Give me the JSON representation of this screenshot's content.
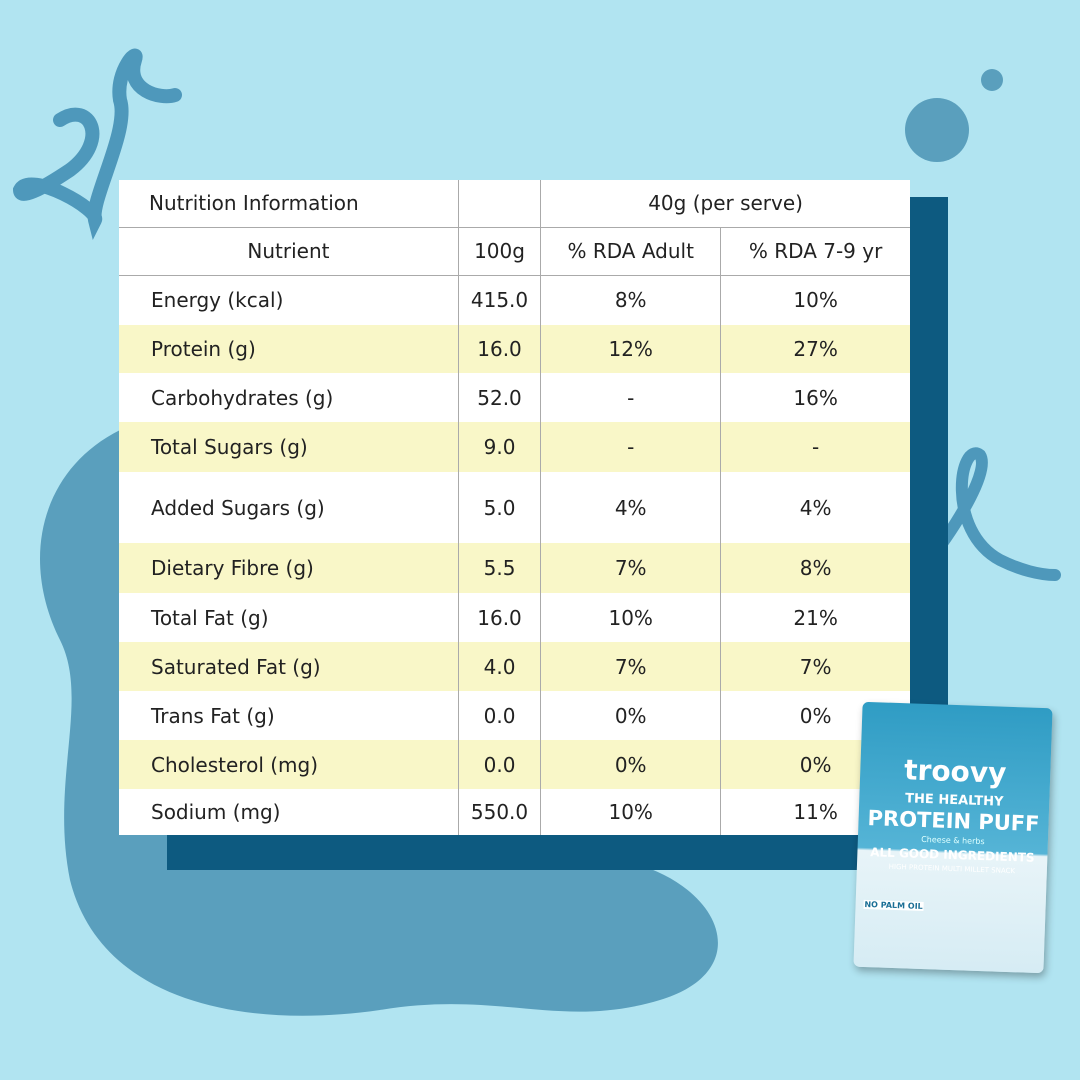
{
  "table": {
    "title": "Nutrition Information",
    "serving": "40g (per serve)",
    "columns": [
      "Nutrient",
      "100g",
      "% RDA Adult",
      "% RDA 7-9 yr"
    ],
    "rows": [
      [
        "Energy (kcal)",
        "415.0",
        "8%",
        "10%"
      ],
      [
        "Protein (g)",
        "16.0",
        "12%",
        "27%"
      ],
      [
        "Carbohydrates (g)",
        "52.0",
        "-",
        "16%"
      ],
      [
        "Total Sugars (g)",
        "9.0",
        "-",
        "-"
      ],
      [
        "Added Sugars (g)",
        "5.0",
        "4%",
        "4%"
      ],
      [
        "Dietary Fibre (g)",
        "5.5",
        "7%",
        "8%"
      ],
      [
        "Total Fat (g)",
        "16.0",
        "10%",
        "21%"
      ],
      [
        "Saturated Fat (g)",
        "4.0",
        "7%",
        "7%"
      ],
      [
        "Trans Fat (g)",
        "0.0",
        "0%",
        "0%"
      ],
      [
        "Cholesterol (mg)",
        "0.0",
        "0%",
        "0%"
      ],
      [
        "Sodium (mg)",
        "550.0",
        "10%",
        "11%"
      ]
    ]
  },
  "package": {
    "brand": "troovy",
    "tagline": "THE HEALTHY",
    "product": "PROTEIN PUFF",
    "flavour": "Cheese & herbs",
    "claim": "ALL GOOD INGREDIENTS",
    "subclaim": "HIGH PROTEIN MULTI MILLET SNACK",
    "badge": "NO PALM OIL"
  }
}
